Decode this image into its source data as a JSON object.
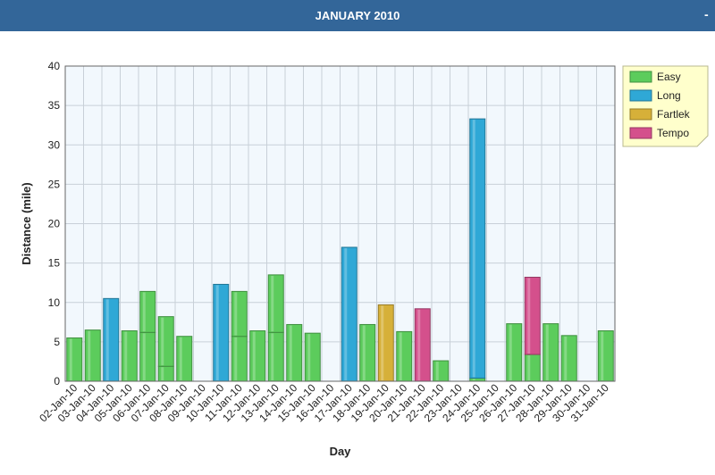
{
  "header": {
    "title": "JANUARY 2010",
    "collapse_icon": "-"
  },
  "colors": {
    "header_bg": "#336699",
    "plot_bg": "#f2f8fd",
    "Easy": "#5ccc5c",
    "Long": "#2fa8d6",
    "Fartlek": "#d6b039",
    "Tempo": "#d4508c"
  },
  "chart_data": {
    "type": "bar",
    "stacked": true,
    "xlabel": "Day",
    "ylabel": "Distance (mile)",
    "ylim": [
      0,
      40
    ],
    "yticks": [
      0,
      5,
      10,
      15,
      20,
      25,
      30,
      35,
      40
    ],
    "grid": true,
    "legend_position": "top-right",
    "categories": [
      "02-Jan-10",
      "03-Jan-10",
      "04-Jan-10",
      "05-Jan-10",
      "06-Jan-10",
      "07-Jan-10",
      "08-Jan-10",
      "09-Jan-10",
      "10-Jan-10",
      "11-Jan-10",
      "12-Jan-10",
      "13-Jan-10",
      "14-Jan-10",
      "15-Jan-10",
      "16-Jan-10",
      "17-Jan-10",
      "18-Jan-10",
      "19-Jan-10",
      "20-Jan-10",
      "21-Jan-10",
      "22-Jan-10",
      "23-Jan-10",
      "24-Jan-10",
      "25-Jan-10",
      "26-Jan-10",
      "27-Jan-10",
      "28-Jan-10",
      "29-Jan-10",
      "30-Jan-10",
      "31-Jan-10"
    ],
    "series": [
      {
        "name": "Easy",
        "color": "#5ccc5c",
        "stack": [
          [
            5.5
          ],
          [
            6.5
          ],
          [],
          [
            6.4
          ],
          [
            6.2,
            5.2
          ],
          [
            1.9,
            6.3
          ],
          [
            5.7
          ],
          [],
          [],
          [
            5.7,
            5.7
          ],
          [
            6.4
          ],
          [
            6.2,
            7.3
          ],
          [
            7.2
          ],
          [
            6.1
          ],
          [],
          [],
          [
            7.2
          ],
          [],
          [
            6.3
          ],
          [],
          [
            2.6
          ],
          [],
          [
            0.4
          ],
          [],
          [
            7.3
          ],
          [
            3.4
          ],
          [
            7.3
          ],
          [
            5.8
          ],
          [],
          [
            6.4
          ]
        ]
      },
      {
        "name": "Long",
        "color": "#2fa8d6",
        "stack": [
          [],
          [],
          [
            10.5
          ],
          [],
          [],
          [],
          [],
          [],
          [
            12.3
          ],
          [],
          [],
          [],
          [],
          [],
          [],
          [
            17.0
          ],
          [],
          [],
          [],
          [],
          [],
          [],
          [
            32.9
          ],
          [],
          [],
          [],
          [],
          [],
          [],
          []
        ]
      },
      {
        "name": "Fartlek",
        "color": "#d6b039",
        "stack": [
          [],
          [],
          [],
          [],
          [],
          [],
          [],
          [],
          [],
          [],
          [],
          [],
          [],
          [],
          [],
          [],
          [],
          [
            9.7
          ],
          [],
          [],
          [],
          [],
          [],
          [],
          [],
          [],
          [],
          [],
          [],
          []
        ]
      },
      {
        "name": "Tempo",
        "color": "#d4508c",
        "stack": [
          [],
          [],
          [],
          [],
          [],
          [],
          [],
          [],
          [],
          [],
          [],
          [],
          [],
          [],
          [],
          [],
          [],
          [],
          [],
          [
            9.2
          ],
          [],
          [],
          [],
          [],
          [],
          [
            9.8
          ],
          [],
          [],
          [],
          []
        ]
      }
    ]
  }
}
